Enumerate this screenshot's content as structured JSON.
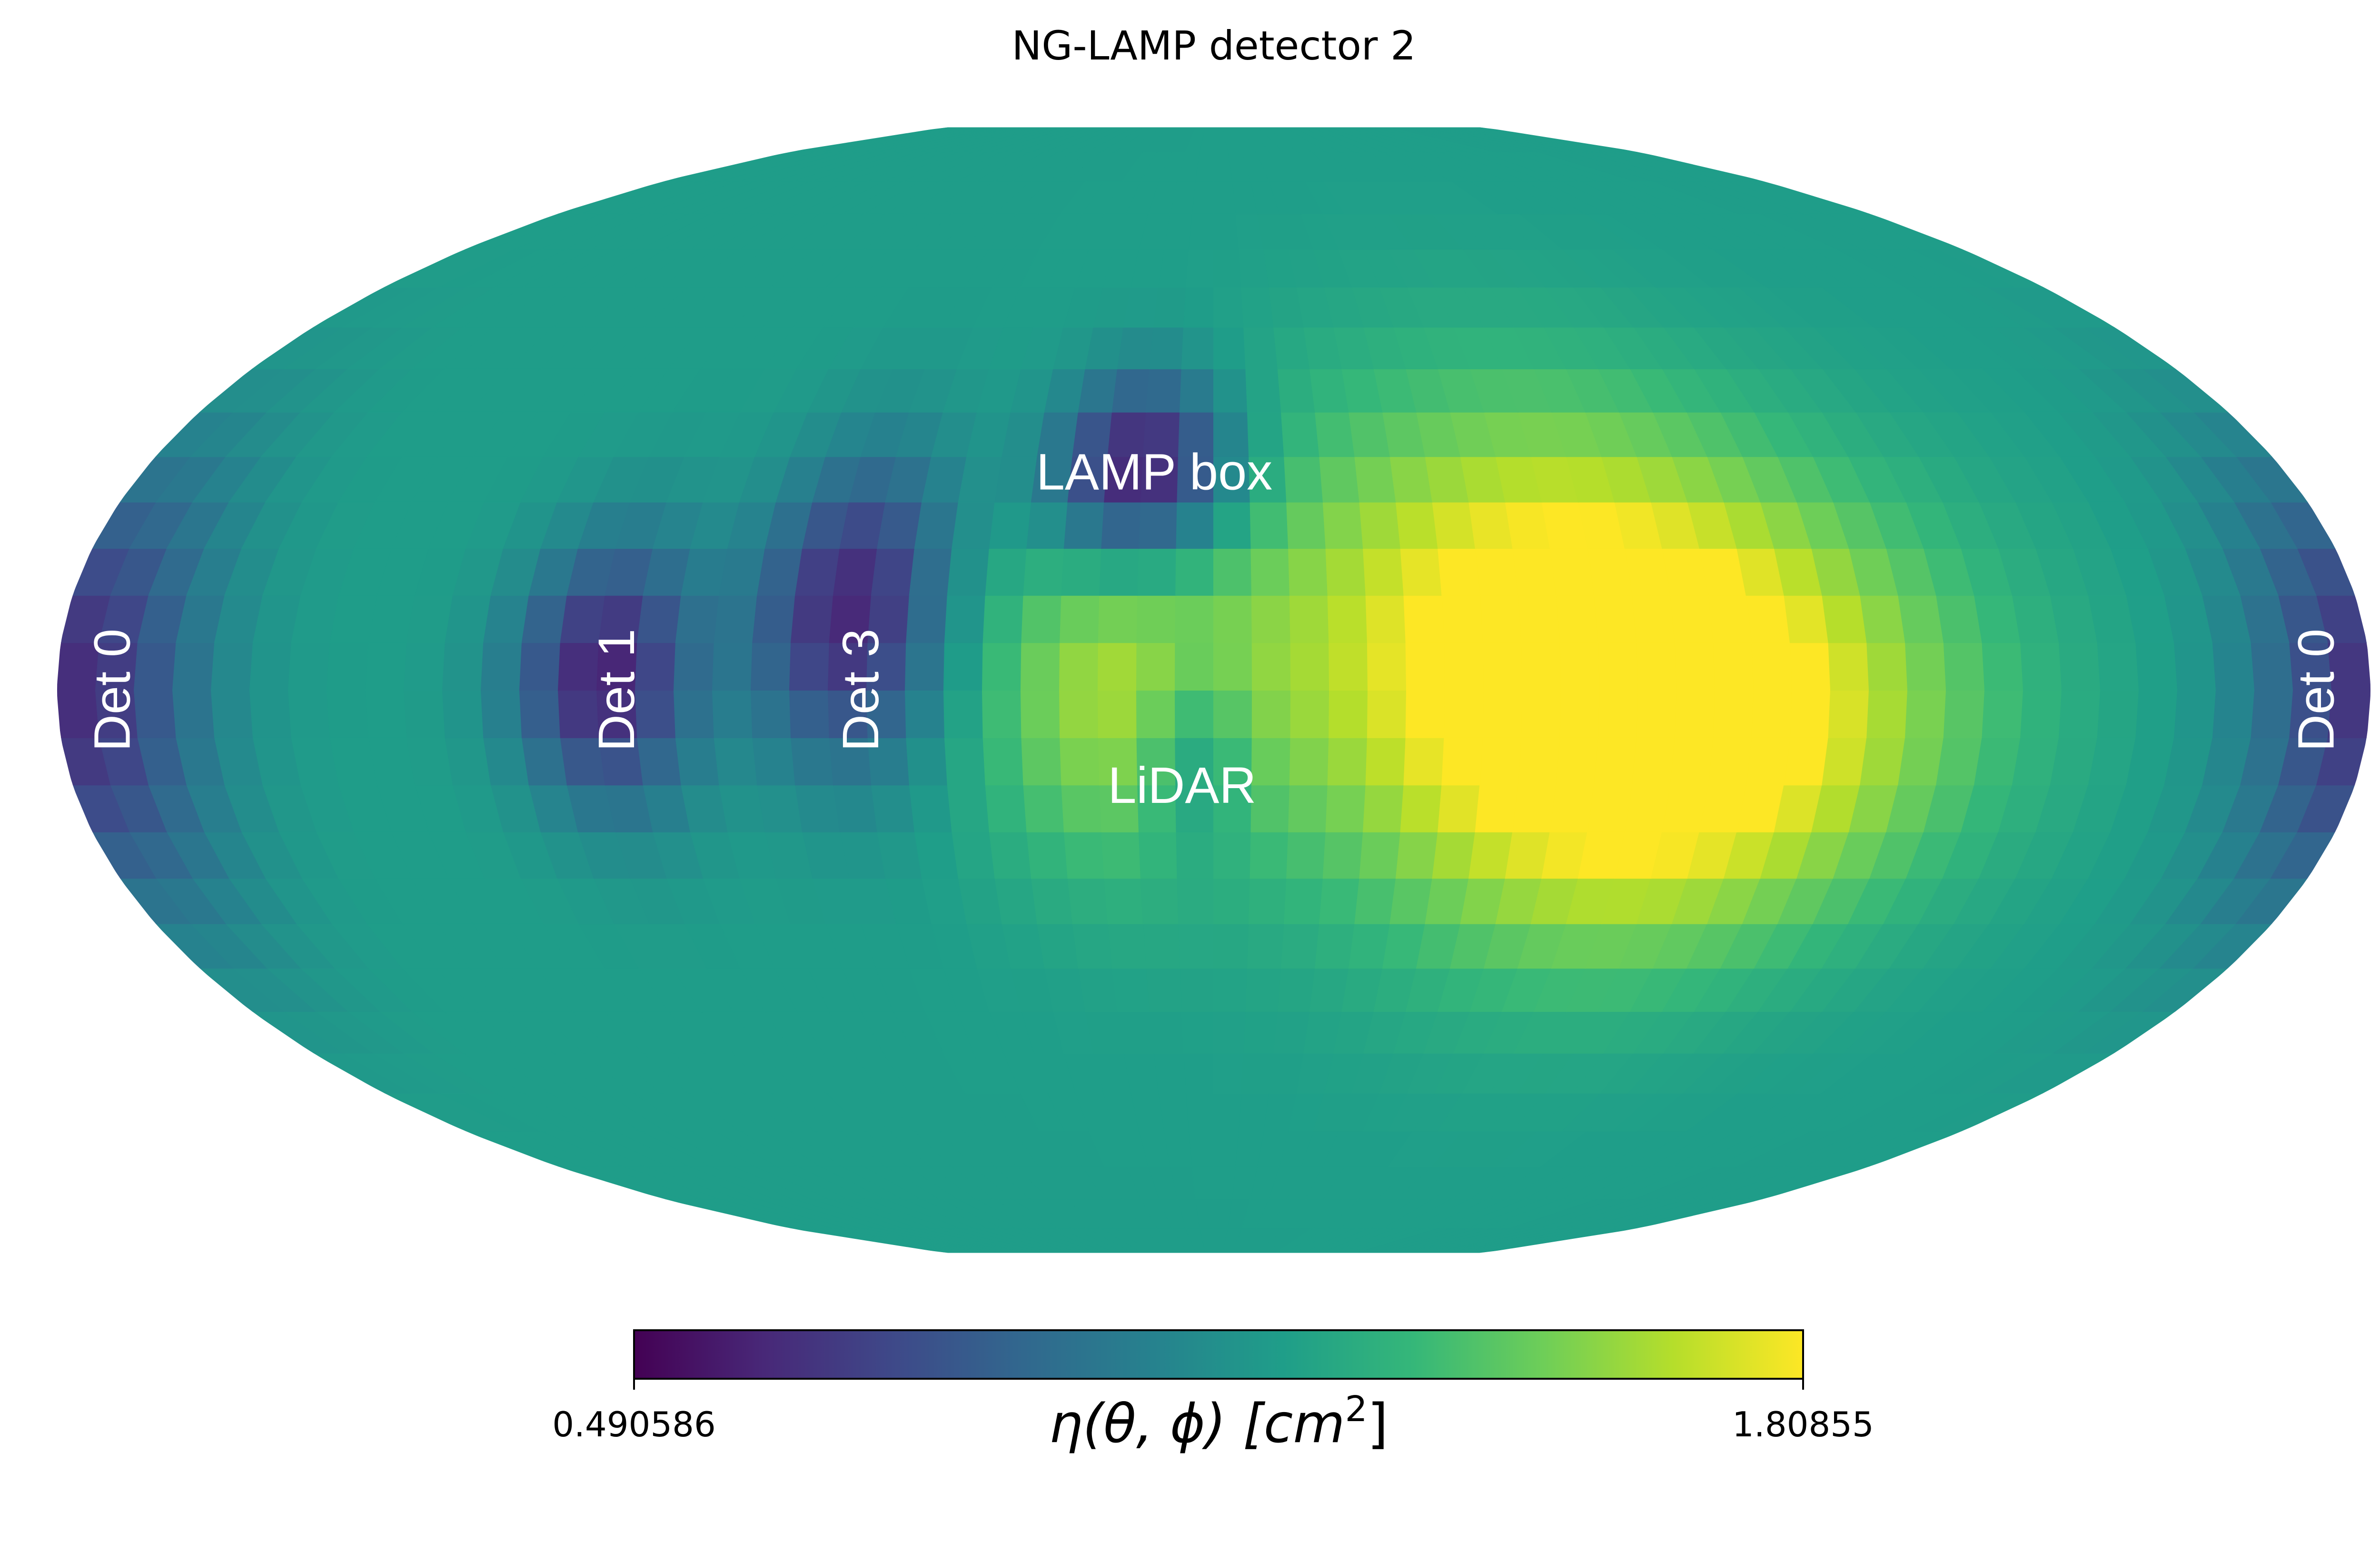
{
  "chart_data": {
    "type": "heatmap",
    "projection": "mollweide",
    "title": "NG-LAMP detector 2",
    "colormap": "viridis",
    "colormap_stops": [
      "#440154",
      "#482878",
      "#3e4989",
      "#31688e",
      "#26828e",
      "#1f9e89",
      "#35b779",
      "#6ece58",
      "#b5de2b",
      "#fde725"
    ],
    "colorbar": {
      "min_label": "0.490586",
      "max_label": "1.80855",
      "min": 0.490586,
      "max": 1.80855,
      "label_prefix": "η(θ, ϕ) [cm",
      "label_sup": "2",
      "label_suffix": "]"
    },
    "grid": false,
    "regions": [
      {
        "label": "LAMP box",
        "lon": -10,
        "lat": 28,
        "rotated": false
      },
      {
        "label": "Det 3",
        "lon": -55,
        "lat": 0,
        "rotated": true
      },
      {
        "label": "Det 1",
        "lon": -93,
        "lat": 0,
        "rotated": true
      },
      {
        "label": "Det 0",
        "lon": -180,
        "lat": 0,
        "rotated": true
      },
      {
        "label": "LiDAR",
        "lon": -5,
        "lat": -12,
        "rotated": false
      },
      {
        "label": "Det 0",
        "lon": 180,
        "lat": 0,
        "rotated": true
      }
    ],
    "features": [
      {
        "lon": -12,
        "lat": 28,
        "value": 0.49,
        "sigma_lon": 11,
        "sigma_lat": 9
      },
      {
        "lon": -95,
        "lat": 2,
        "value": 0.62,
        "sigma_lon": 10,
        "sigma_lat": 12
      },
      {
        "lon": -57,
        "lat": 10,
        "value": 0.63,
        "sigma_lon": 11,
        "sigma_lat": 14
      },
      {
        "lon": -178,
        "lat": 0,
        "value": 0.66,
        "sigma_lon": 14,
        "sigma_lat": 20
      },
      {
        "lon": -3,
        "lat": -8,
        "value": 0.95,
        "sigma_lon": 6,
        "sigma_lat": 9
      },
      {
        "lon": 55,
        "lat": 10,
        "value": 1.78,
        "sigma_lon": 35,
        "sigma_lat": 20
      },
      {
        "lon": 70,
        "lat": -10,
        "value": 1.75,
        "sigma_lon": 30,
        "sigma_lat": 18
      },
      {
        "lon": -15,
        "lat": 0,
        "value": 1.58,
        "sigma_lon": 16,
        "sigma_lat": 16
      }
    ]
  }
}
